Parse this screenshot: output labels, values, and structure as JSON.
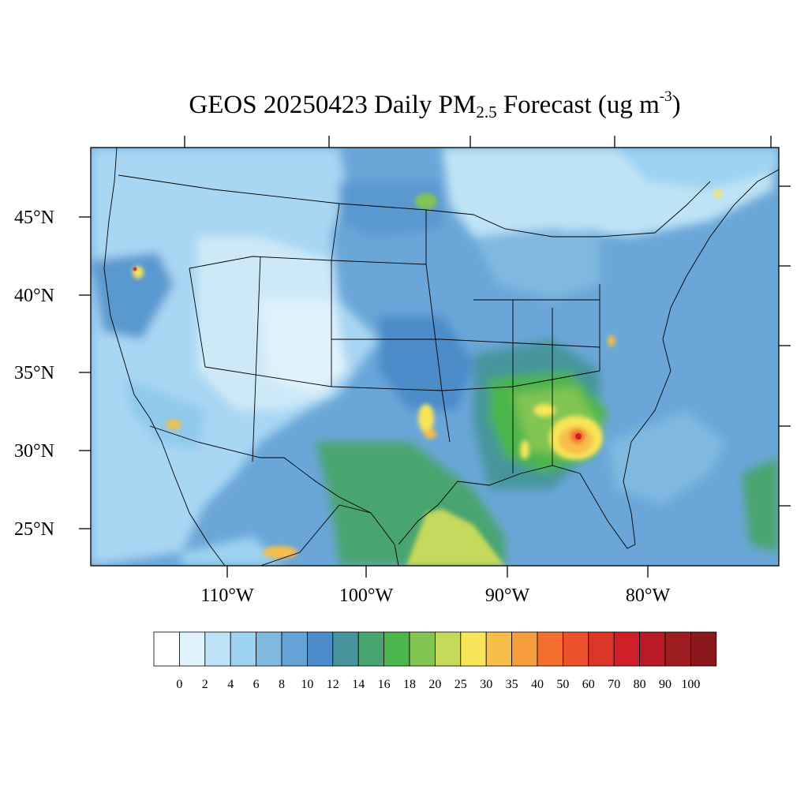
{
  "title": {
    "prefix": "GEOS 20250423 Daily PM",
    "subscript": "2.5",
    "middle": " Forecast (ug m",
    "superscript": "-3",
    "suffix": ")"
  },
  "map": {
    "lat_labels": [
      "45°N",
      "40°N",
      "35°N",
      "30°N",
      "25°N"
    ],
    "lon_labels": [
      "110°W",
      "100°W",
      "90°W",
      "80°W"
    ],
    "background_color": "#6aa6d8"
  },
  "colorbar": {
    "labels": [
      "0",
      "2",
      "4",
      "6",
      "8",
      "10",
      "12",
      "14",
      "16",
      "18",
      "20",
      "25",
      "30",
      "35",
      "40",
      "50",
      "60",
      "70",
      "80",
      "90",
      "100"
    ],
    "colors": [
      "#ffffff",
      "#e0f2fb",
      "#bfe3f6",
      "#9dd3f1",
      "#7fb9e0",
      "#65a3d6",
      "#4b8cc9",
      "#46959c",
      "#48a56f",
      "#4cb54b",
      "#82c552",
      "#c5d95b",
      "#f8e559",
      "#f7bf49",
      "#f59c3c",
      "#f46f2e",
      "#ec522d",
      "#dd3528",
      "#cf2027",
      "#b81b25",
      "#9c1d20",
      "#8a171b"
    ]
  },
  "highlights": [
    {
      "name": "southeast-hotspot",
      "color": "#f46f2e"
    },
    {
      "name": "gulf-plume",
      "color": "#c5d95b"
    }
  ]
}
